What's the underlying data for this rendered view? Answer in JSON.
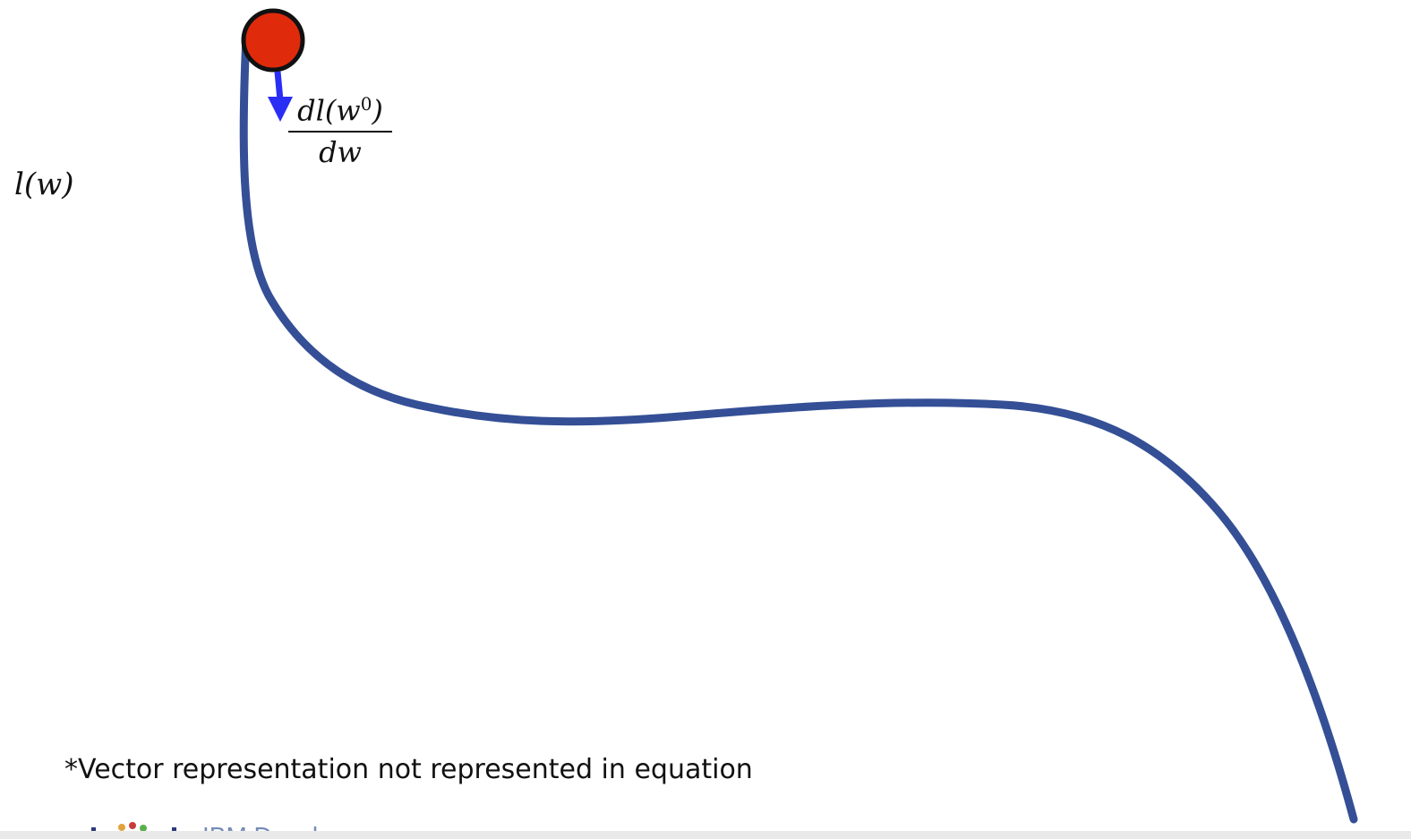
{
  "axis": {
    "y_label": "l(w)"
  },
  "gradient": {
    "numerator": "dl(w",
    "superscript": "0",
    "numerator_close": ")",
    "denominator": "dw"
  },
  "footnote": "*Vector representation not represented in equation",
  "logo": {
    "text": "IBM Developer"
  },
  "colors": {
    "curve": "#344f96",
    "ball": "#e02a0c",
    "arrow": "#2a2ef5",
    "text": "#111111"
  }
}
